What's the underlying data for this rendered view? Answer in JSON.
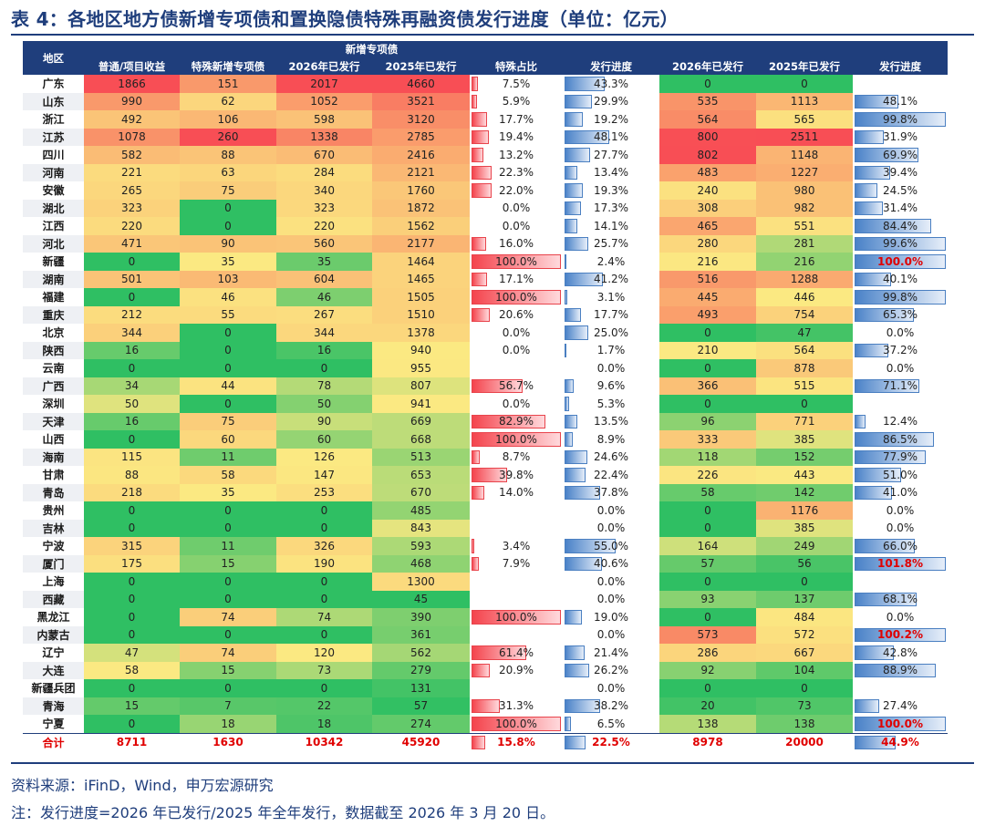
{
  "title": "表 4：各地区地方债新增专项债和置换隐债特殊再融资债发行进度（单位：亿元）",
  "header": {
    "region": "地区",
    "group": "新增专项债",
    "columns": [
      "普通/项目收益",
      "特殊新增专项债",
      "2026年已发行",
      "2025年已发行",
      "特殊占比",
      "发行进度",
      "2026年已发行",
      "2025年已发行",
      "发行进度"
    ]
  },
  "rows": [
    {
      "r": "广东",
      "a": "1866",
      "b": "151",
      "c": "2017",
      "d": "4660",
      "e": "7.5%",
      "f": "43.3%",
      "g": "0",
      "h": "0",
      "i": ""
    },
    {
      "r": "山东",
      "a": "990",
      "b": "62",
      "c": "1052",
      "d": "3521",
      "e": "5.9%",
      "f": "29.9%",
      "g": "535",
      "h": "1113",
      "i": "48.1%"
    },
    {
      "r": "浙江",
      "a": "492",
      "b": "106",
      "c": "598",
      "d": "3120",
      "e": "17.7%",
      "f": "19.2%",
      "g": "564",
      "h": "565",
      "i": "99.8%"
    },
    {
      "r": "江苏",
      "a": "1078",
      "b": "260",
      "c": "1338",
      "d": "2785",
      "e": "19.4%",
      "f": "48.1%",
      "g": "800",
      "h": "2511",
      "i": "31.9%"
    },
    {
      "r": "四川",
      "a": "582",
      "b": "88",
      "c": "670",
      "d": "2416",
      "e": "13.2%",
      "f": "27.7%",
      "g": "802",
      "h": "1148",
      "i": "69.9%"
    },
    {
      "r": "河南",
      "a": "221",
      "b": "63",
      "c": "284",
      "d": "2121",
      "e": "22.3%",
      "f": "13.4%",
      "g": "483",
      "h": "1227",
      "i": "39.4%"
    },
    {
      "r": "安徽",
      "a": "265",
      "b": "75",
      "c": "340",
      "d": "1760",
      "e": "22.0%",
      "f": "19.3%",
      "g": "240",
      "h": "980",
      "i": "24.5%"
    },
    {
      "r": "湖北",
      "a": "323",
      "b": "0",
      "c": "323",
      "d": "1872",
      "e": "0.0%",
      "f": "17.3%",
      "g": "308",
      "h": "982",
      "i": "31.4%"
    },
    {
      "r": "江西",
      "a": "220",
      "b": "0",
      "c": "220",
      "d": "1562",
      "e": "0.0%",
      "f": "14.1%",
      "g": "465",
      "h": "551",
      "i": "84.4%"
    },
    {
      "r": "河北",
      "a": "471",
      "b": "90",
      "c": "560",
      "d": "2177",
      "e": "16.0%",
      "f": "25.7%",
      "g": "280",
      "h": "281",
      "i": "99.6%"
    },
    {
      "r": "新疆",
      "a": "0",
      "b": "35",
      "c": "35",
      "d": "1464",
      "e": "100.0%",
      "f": "2.4%",
      "g": "216",
      "h": "216",
      "i": "100.0%"
    },
    {
      "r": "湖南",
      "a": "501",
      "b": "103",
      "c": "604",
      "d": "1465",
      "e": "17.1%",
      "f": "41.2%",
      "g": "516",
      "h": "1288",
      "i": "40.1%"
    },
    {
      "r": "福建",
      "a": "0",
      "b": "46",
      "c": "46",
      "d": "1505",
      "e": "100.0%",
      "f": "3.1%",
      "g": "445",
      "h": "446",
      "i": "99.8%"
    },
    {
      "r": "重庆",
      "a": "212",
      "b": "55",
      "c": "267",
      "d": "1510",
      "e": "20.6%",
      "f": "17.7%",
      "g": "493",
      "h": "754",
      "i": "65.3%"
    },
    {
      "r": "北京",
      "a": "344",
      "b": "0",
      "c": "344",
      "d": "1378",
      "e": "0.0%",
      "f": "25.0%",
      "g": "0",
      "h": "47",
      "i": "0.0%"
    },
    {
      "r": "陕西",
      "a": "16",
      "b": "0",
      "c": "16",
      "d": "940",
      "e": "0.0%",
      "f": "1.7%",
      "g": "210",
      "h": "564",
      "i": "37.2%"
    },
    {
      "r": "云南",
      "a": "0",
      "b": "0",
      "c": "0",
      "d": "955",
      "e": "",
      "f": "0.0%",
      "g": "0",
      "h": "878",
      "i": "0.0%"
    },
    {
      "r": "广西",
      "a": "34",
      "b": "44",
      "c": "78",
      "d": "807",
      "e": "56.7%",
      "f": "9.6%",
      "g": "366",
      "h": "515",
      "i": "71.1%"
    },
    {
      "r": "深圳",
      "a": "50",
      "b": "0",
      "c": "50",
      "d": "941",
      "e": "0.0%",
      "f": "5.3%",
      "g": "0",
      "h": "0",
      "i": ""
    },
    {
      "r": "天津",
      "a": "16",
      "b": "75",
      "c": "90",
      "d": "669",
      "e": "82.9%",
      "f": "13.5%",
      "g": "96",
      "h": "771",
      "i": "12.4%"
    },
    {
      "r": "山西",
      "a": "0",
      "b": "60",
      "c": "60",
      "d": "668",
      "e": "100.0%",
      "f": "8.9%",
      "g": "333",
      "h": "385",
      "i": "86.5%"
    },
    {
      "r": "海南",
      "a": "115",
      "b": "11",
      "c": "126",
      "d": "513",
      "e": "8.7%",
      "f": "24.6%",
      "g": "118",
      "h": "152",
      "i": "77.9%"
    },
    {
      "r": "甘肃",
      "a": "88",
      "b": "58",
      "c": "147",
      "d": "653",
      "e": "39.8%",
      "f": "22.4%",
      "g": "226",
      "h": "443",
      "i": "51.0%"
    },
    {
      "r": "青岛",
      "a": "218",
      "b": "35",
      "c": "253",
      "d": "670",
      "e": "14.0%",
      "f": "37.8%",
      "g": "58",
      "h": "142",
      "i": "41.0%"
    },
    {
      "r": "贵州",
      "a": "0",
      "b": "0",
      "c": "0",
      "d": "485",
      "e": "",
      "f": "0.0%",
      "g": "0",
      "h": "1176",
      "i": "0.0%"
    },
    {
      "r": "吉林",
      "a": "0",
      "b": "0",
      "c": "0",
      "d": "843",
      "e": "",
      "f": "0.0%",
      "g": "0",
      "h": "385",
      "i": "0.0%"
    },
    {
      "r": "宁波",
      "a": "315",
      "b": "11",
      "c": "326",
      "d": "593",
      "e": "3.4%",
      "f": "55.0%",
      "g": "164",
      "h": "249",
      "i": "66.0%"
    },
    {
      "r": "厦门",
      "a": "175",
      "b": "15",
      "c": "190",
      "d": "468",
      "e": "7.9%",
      "f": "40.6%",
      "g": "57",
      "h": "56",
      "i": "101.8%"
    },
    {
      "r": "上海",
      "a": "0",
      "b": "0",
      "c": "0",
      "d": "1300",
      "e": "",
      "f": "0.0%",
      "g": "0",
      "h": "0",
      "i": ""
    },
    {
      "r": "西藏",
      "a": "0",
      "b": "0",
      "c": "0",
      "d": "45",
      "e": "",
      "f": "0.0%",
      "g": "93",
      "h": "137",
      "i": "68.1%"
    },
    {
      "r": "黑龙江",
      "a": "0",
      "b": "74",
      "c": "74",
      "d": "390",
      "e": "100.0%",
      "f": "19.0%",
      "g": "0",
      "h": "484",
      "i": "0.0%"
    },
    {
      "r": "内蒙古",
      "a": "0",
      "b": "0",
      "c": "0",
      "d": "361",
      "e": "",
      "f": "0.0%",
      "g": "573",
      "h": "572",
      "i": "100.2%"
    },
    {
      "r": "辽宁",
      "a": "47",
      "b": "74",
      "c": "120",
      "d": "562",
      "e": "61.4%",
      "f": "21.4%",
      "g": "286",
      "h": "667",
      "i": "42.8%"
    },
    {
      "r": "大连",
      "a": "58",
      "b": "15",
      "c": "73",
      "d": "279",
      "e": "20.9%",
      "f": "26.2%",
      "g": "92",
      "h": "104",
      "i": "88.9%"
    },
    {
      "r": "新疆兵团",
      "a": "0",
      "b": "0",
      "c": "0",
      "d": "131",
      "e": "",
      "f": "0.0%",
      "g": "0",
      "h": "0",
      "i": ""
    },
    {
      "r": "青海",
      "a": "15",
      "b": "7",
      "c": "22",
      "d": "57",
      "e": "31.3%",
      "f": "38.2%",
      "g": "20",
      "h": "73",
      "i": "27.4%"
    },
    {
      "r": "宁夏",
      "a": "0",
      "b": "18",
      "c": "18",
      "d": "274",
      "e": "100.0%",
      "f": "6.5%",
      "g": "138",
      "h": "138",
      "i": "100.0%"
    }
  ],
  "total": {
    "r": "合计",
    "a": "8711",
    "b": "1630",
    "c": "10342",
    "d": "45920",
    "e": "15.8%",
    "f": "22.5%",
    "g": "8978",
    "h": "20000",
    "i": "44.9%"
  },
  "highlight_color": "#e00000",
  "heat_colors": {
    "low": "#2fbf63",
    "mid": "#fbe982",
    "high": "#f84e55"
  },
  "bar_colors": {
    "ratio": "#f4444d",
    "progress": "#4a82c8"
  },
  "source": "资料来源：iFinD，Wind，申万宏源研究",
  "note": "注：发行进度=2026 年已发行/2025 年全年发行，数据截至 2026 年 3 月 20 日。"
}
